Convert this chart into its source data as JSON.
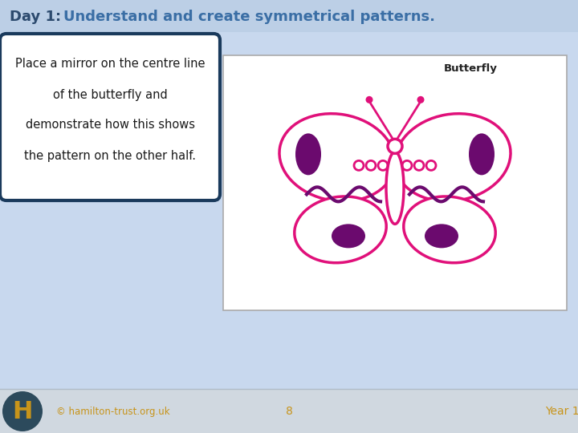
{
  "title_bold": "Day 1: ",
  "title_normal": "Understand and create symmetrical patterns.",
  "title_color_bold": "#2c4a6e",
  "title_color_normal": "#3a6ea5",
  "bg_color": "#c8d8ee",
  "footer_bg": "#d0d8e0",
  "footer_text_color": "#c8941a",
  "footer_copyright": "© hamilton-trust.org.uk",
  "footer_page": "8",
  "footer_year": "Year 1",
  "hamilton_h_color": "#c8941a",
  "hamilton_circle_color": "#2c4a5c",
  "text_box_text_line1": "Place a mirror on the centre line",
  "text_box_text_line2": "of the butterfly and",
  "text_box_text_line3": "demonstrate how this shows",
  "text_box_text_line4": "the pattern on the other half.",
  "text_box_border": "#1a3a5c",
  "butterfly_outline_color": "#e0107a",
  "butterfly_dark_fill": "#6b0a6e",
  "butterfly_label": "Butterfly"
}
